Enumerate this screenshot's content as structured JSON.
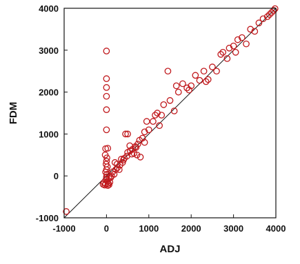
{
  "chart_data": {
    "type": "scatter",
    "xlabel": "ADJ",
    "ylabel": "FDM",
    "xlim": [
      -1000,
      4000
    ],
    "ylim": [
      -1000,
      4000
    ],
    "xticks": [
      -1000,
      0,
      1000,
      2000,
      3000,
      4000
    ],
    "yticks": [
      -1000,
      0,
      1000,
      2000,
      3000,
      4000
    ],
    "x_tick_labels": [
      "-1000",
      "0",
      "1000",
      "2000",
      "3000",
      "4000"
    ],
    "y_tick_labels": [
      "-1000",
      "0",
      "1000",
      "2000",
      "3000",
      "4000"
    ],
    "grid": false,
    "marker": "open-circle",
    "marker_color": "#c0181c",
    "reference_line": {
      "from": [
        -1000,
        -1000
      ],
      "to": [
        4000,
        4000
      ],
      "color": "#111111"
    },
    "series": [
      {
        "points": [
          [
            -950,
            -850
          ],
          [
            0,
            2980
          ],
          [
            0,
            2320
          ],
          [
            0,
            2110
          ],
          [
            0,
            1900
          ],
          [
            0,
            1580
          ],
          [
            0,
            1100
          ],
          [
            -20,
            650
          ],
          [
            30,
            660
          ],
          [
            -30,
            500
          ],
          [
            10,
            430
          ],
          [
            0,
            350
          ],
          [
            -10,
            280
          ],
          [
            20,
            220
          ],
          [
            0,
            150
          ],
          [
            -20,
            90
          ],
          [
            10,
            40
          ],
          [
            0,
            -20
          ],
          [
            -10,
            -80
          ],
          [
            20,
            -130
          ],
          [
            40,
            -180
          ],
          [
            80,
            -150
          ],
          [
            60,
            -60
          ],
          [
            100,
            -40
          ],
          [
            150,
            100
          ],
          [
            200,
            320
          ],
          [
            250,
            280
          ],
          [
            300,
            150
          ],
          [
            350,
            400
          ],
          [
            400,
            380
          ],
          [
            450,
            1000
          ],
          [
            500,
            1000
          ],
          [
            550,
            720
          ],
          [
            500,
            560
          ],
          [
            600,
            520
          ],
          [
            650,
            540
          ],
          [
            700,
            680
          ],
          [
            720,
            500
          ],
          [
            800,
            450
          ],
          [
            850,
            900
          ],
          [
            900,
            800
          ],
          [
            900,
            1050
          ],
          [
            950,
            1300
          ],
          [
            1000,
            1100
          ],
          [
            1100,
            1300
          ],
          [
            1150,
            1450
          ],
          [
            1200,
            1500
          ],
          [
            1250,
            1200
          ],
          [
            1300,
            1450
          ],
          [
            1350,
            1700
          ],
          [
            1450,
            2500
          ],
          [
            1500,
            1800
          ],
          [
            1600,
            1550
          ],
          [
            1650,
            2150
          ],
          [
            1700,
            2000
          ],
          [
            1800,
            2200
          ],
          [
            1900,
            2100
          ],
          [
            1950,
            2050
          ],
          [
            2000,
            2150
          ],
          [
            2100,
            2400
          ],
          [
            2200,
            2280
          ],
          [
            2300,
            2500
          ],
          [
            2350,
            2250
          ],
          [
            2400,
            2300
          ],
          [
            2500,
            2600
          ],
          [
            2600,
            2500
          ],
          [
            2700,
            2900
          ],
          [
            2750,
            2950
          ],
          [
            2850,
            2800
          ],
          [
            2900,
            3050
          ],
          [
            3000,
            3100
          ],
          [
            3050,
            2950
          ],
          [
            3100,
            3250
          ],
          [
            3200,
            3300
          ],
          [
            3300,
            3150
          ],
          [
            3400,
            3500
          ],
          [
            3500,
            3450
          ],
          [
            3600,
            3650
          ],
          [
            3700,
            3750
          ],
          [
            3800,
            3800
          ],
          [
            3850,
            3850
          ],
          [
            3900,
            3900
          ],
          [
            3950,
            3950
          ],
          [
            3980,
            3990
          ],
          [
            -80,
            -200
          ],
          [
            -60,
            -160
          ],
          [
            -40,
            -220
          ],
          [
            -20,
            -190
          ],
          [
            30,
            -230
          ],
          [
            60,
            -210
          ],
          [
            120,
            0
          ],
          [
            180,
            40
          ],
          [
            220,
            150
          ],
          [
            260,
            200
          ],
          [
            320,
            260
          ],
          [
            380,
            320
          ],
          [
            420,
            420
          ],
          [
            480,
            470
          ],
          [
            560,
            600
          ],
          [
            620,
            640
          ],
          [
            680,
            700
          ],
          [
            740,
            760
          ],
          [
            780,
            850
          ]
        ]
      }
    ]
  }
}
